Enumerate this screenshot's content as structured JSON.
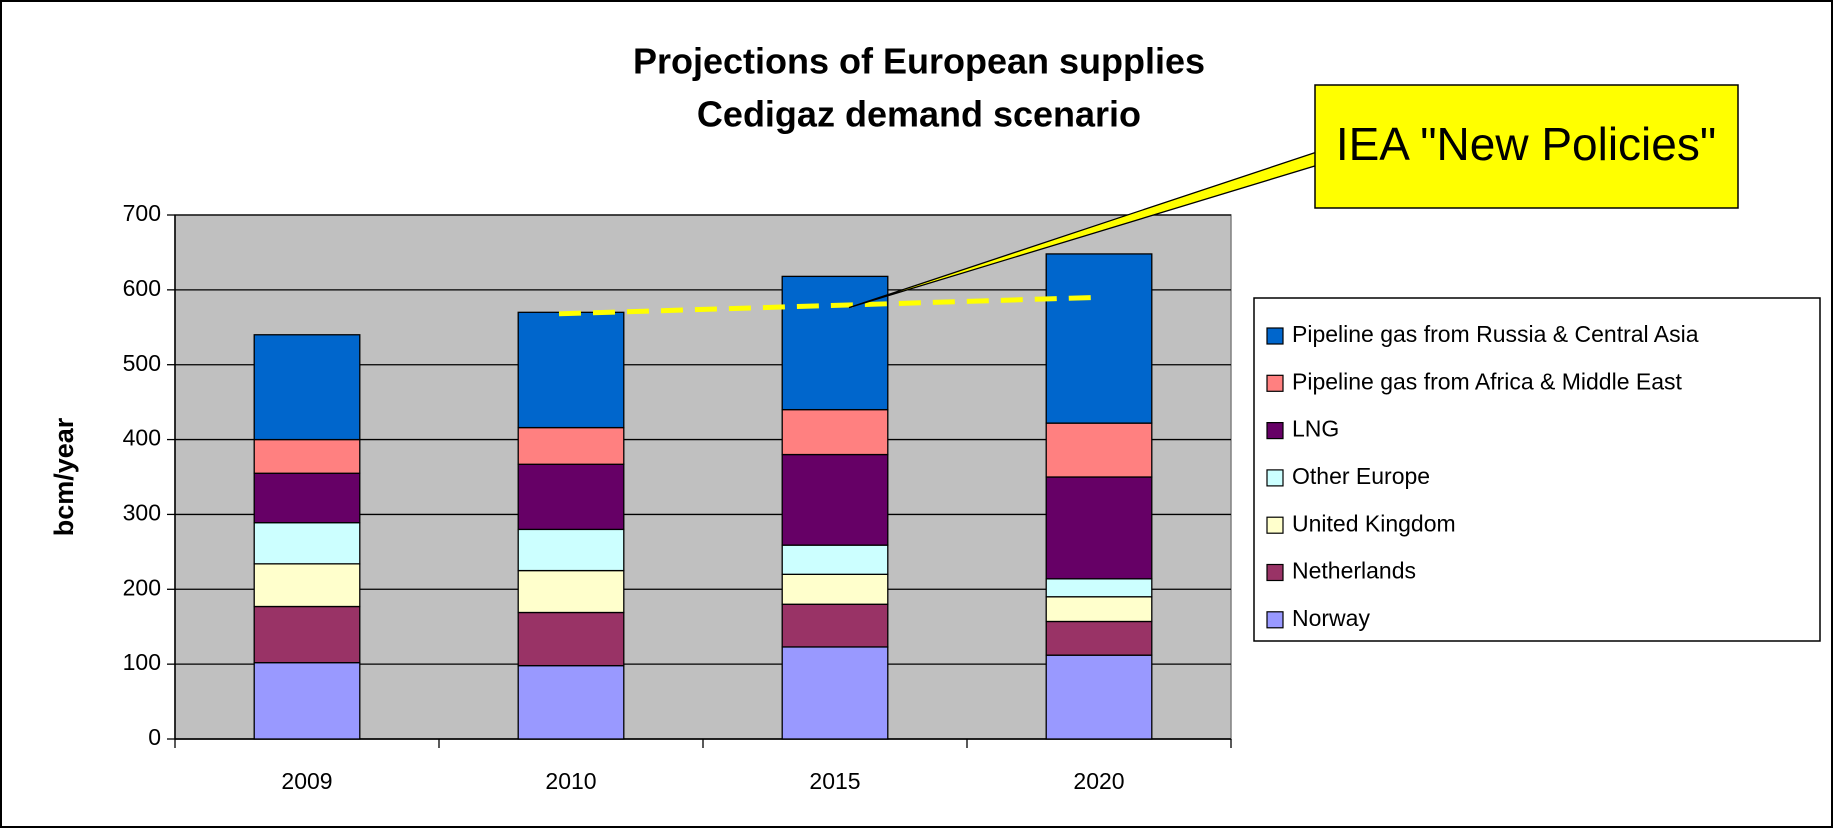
{
  "chart_data": {
    "type": "stacked_bar",
    "title": [
      "Projections of European supplies",
      "Cedigaz demand scenario"
    ],
    "y_label": "bcm/year",
    "categories": [
      "2009",
      "2010",
      "2015",
      "2020"
    ],
    "series": [
      {
        "name": "Norway",
        "color": "#9999ff",
        "values": [
          102,
          98,
          123,
          112
        ]
      },
      {
        "name": "Netherlands",
        "color": "#993366",
        "values": [
          75,
          71,
          57,
          45
        ]
      },
      {
        "name": "United Kingdom",
        "color": "#ffffcc",
        "values": [
          57,
          56,
          40,
          33
        ]
      },
      {
        "name": "Other Europe",
        "color": "#ccffff",
        "values": [
          55,
          55,
          39,
          24
        ]
      },
      {
        "name": "LNG",
        "color": "#660066",
        "values": [
          66,
          87,
          121,
          136
        ]
      },
      {
        "name": "Pipeline gas from Africa & Middle East",
        "color": "#ff8080",
        "values": [
          45,
          49,
          60,
          72
        ]
      },
      {
        "name": "Pipeline gas from Russia & Central Asia",
        "color": "#0066cc",
        "values": [
          140,
          154,
          178,
          226
        ]
      }
    ],
    "ylim": [
      0,
      700
    ],
    "yticks": [
      0,
      100,
      200,
      300,
      400,
      500,
      600,
      700
    ],
    "grid": true,
    "annotation": {
      "text": "IEA \"New Policies\"",
      "line_values": [
        568,
        590
      ],
      "line_color": "#ffff00"
    },
    "legend": "right"
  }
}
